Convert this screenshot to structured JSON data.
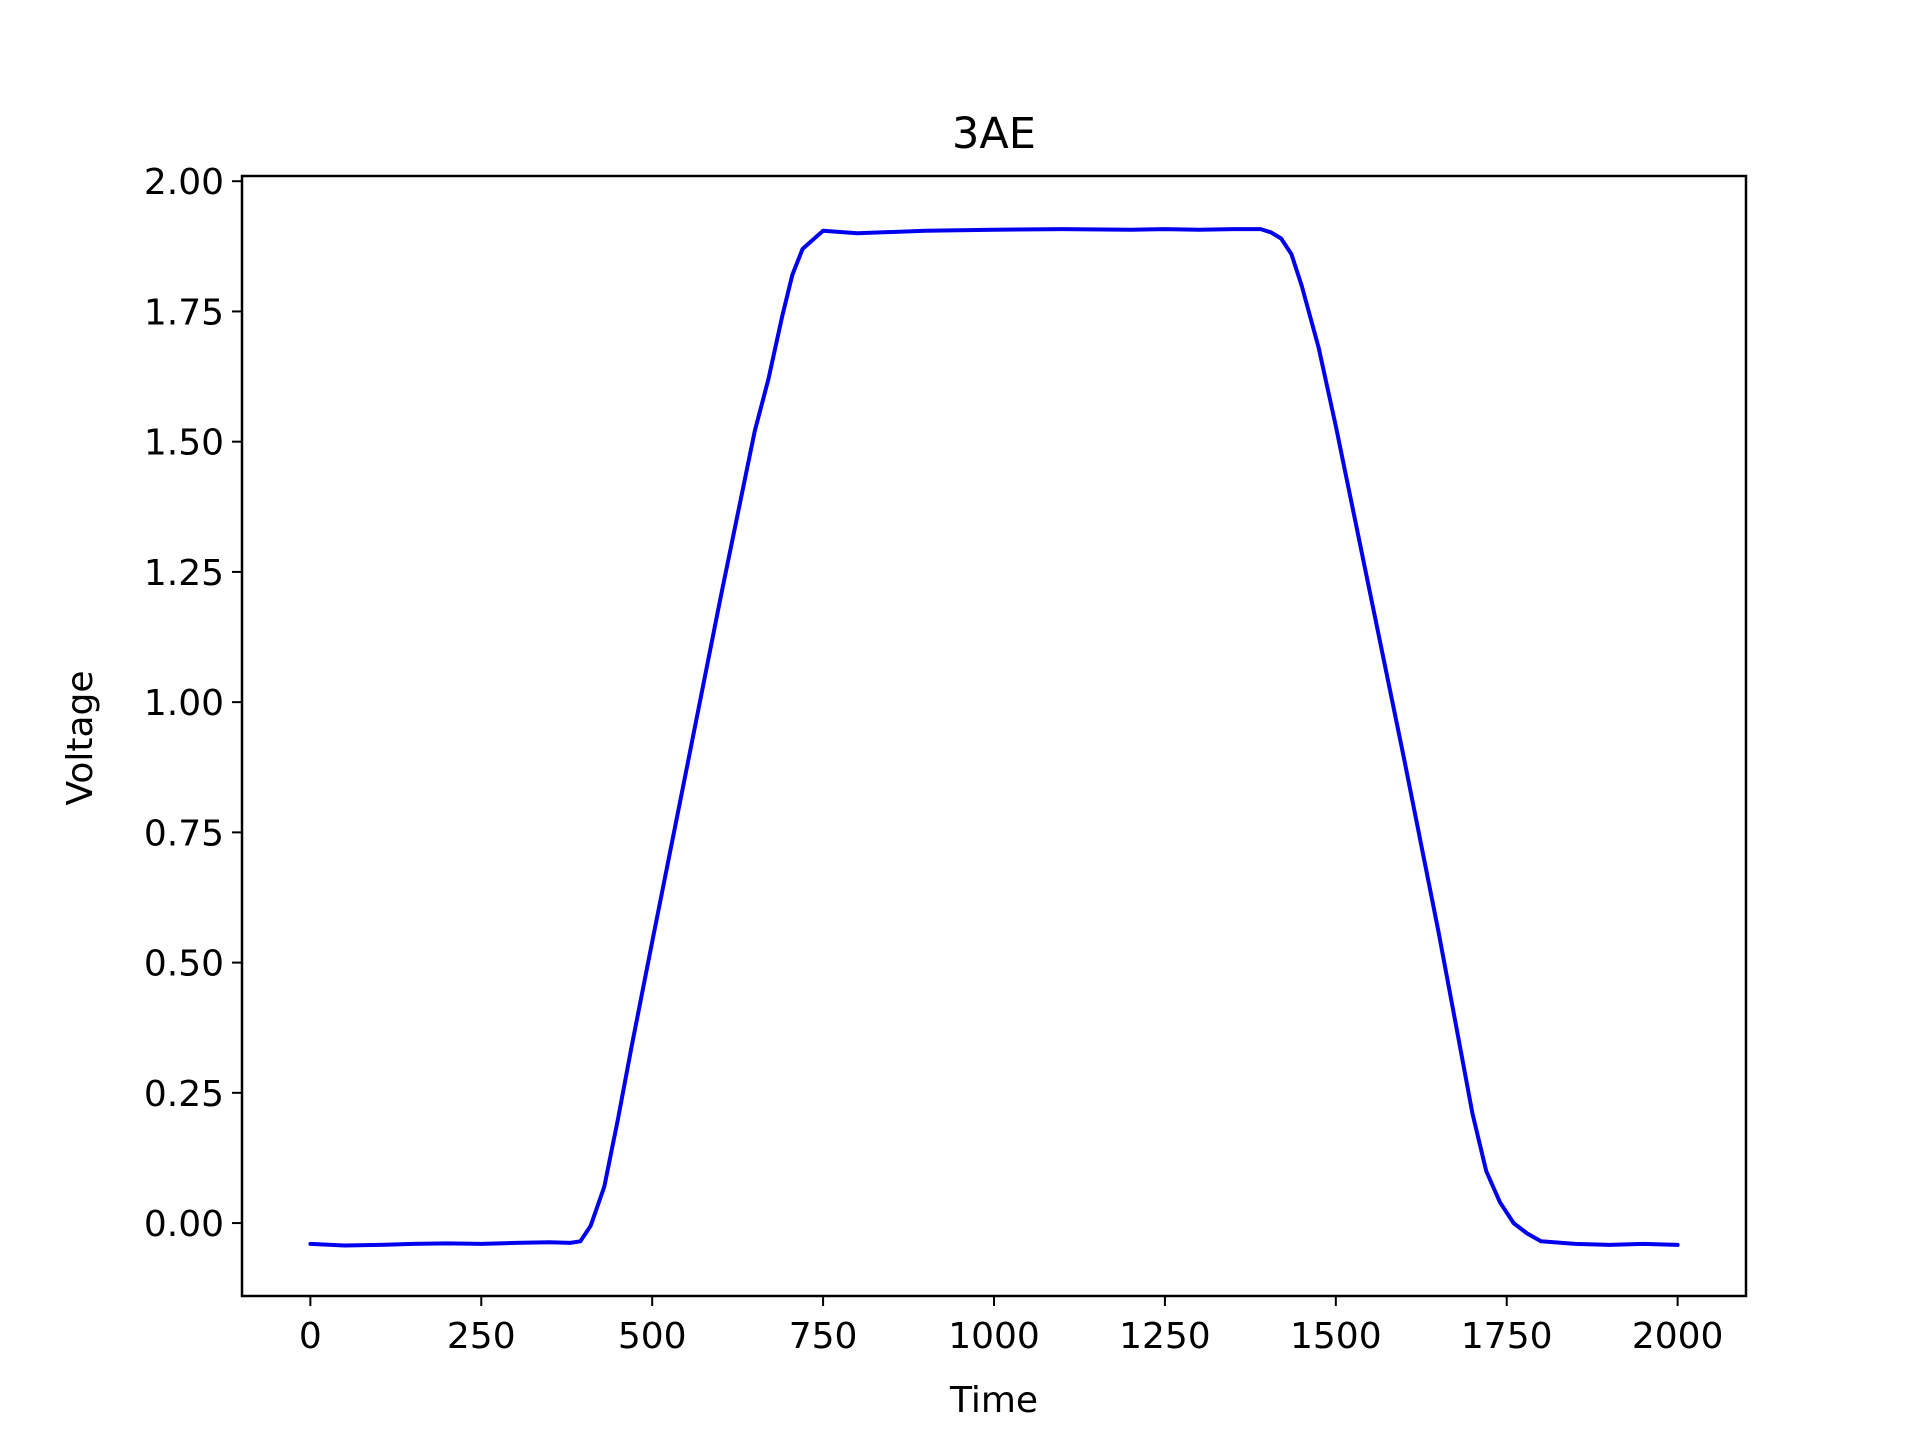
{
  "chart_data": {
    "type": "line",
    "title": "3AE",
    "xlabel": "Time",
    "ylabel": "Voltage",
    "xlim": [
      -100,
      2100
    ],
    "ylim": [
      -0.14,
      2.01
    ],
    "xticks": [
      0,
      250,
      500,
      750,
      1000,
      1250,
      1500,
      1750,
      2000
    ],
    "xtick_labels": [
      "0",
      "250",
      "500",
      "750",
      "1000",
      "1250",
      "1500",
      "1750",
      "2000"
    ],
    "yticks": [
      0.0,
      0.25,
      0.5,
      0.75,
      1.0,
      1.25,
      1.5,
      1.75,
      2.0
    ],
    "ytick_labels": [
      "0.00",
      "0.25",
      "0.50",
      "0.75",
      "1.00",
      "1.25",
      "1.50",
      "1.75",
      "2.00"
    ],
    "grid": false,
    "series": [
      {
        "color": "#0000ee",
        "x": [
          0,
          50,
          100,
          150,
          200,
          250,
          300,
          350,
          380,
          395,
          410,
          430,
          450,
          470,
          500,
          550,
          600,
          650,
          670,
          690,
          705,
          720,
          750,
          800,
          900,
          1000,
          1100,
          1200,
          1250,
          1300,
          1350,
          1390,
          1405,
          1420,
          1435,
          1450,
          1475,
          1500,
          1550,
          1600,
          1650,
          1680,
          1700,
          1720,
          1740,
          1760,
          1780,
          1800,
          1850,
          1900,
          1950,
          2000
        ],
        "y": [
          -0.04,
          -0.043,
          -0.042,
          -0.04,
          -0.039,
          -0.04,
          -0.038,
          -0.037,
          -0.038,
          -0.035,
          -0.005,
          0.07,
          0.2,
          0.34,
          0.54,
          0.87,
          1.2,
          1.52,
          1.62,
          1.74,
          1.82,
          1.87,
          1.905,
          1.9,
          1.905,
          1.907,
          1.908,
          1.907,
          1.908,
          1.907,
          1.908,
          1.908,
          1.902,
          1.89,
          1.86,
          1.8,
          1.68,
          1.53,
          1.21,
          0.89,
          0.56,
          0.35,
          0.21,
          0.1,
          0.04,
          0.0,
          -0.02,
          -0.035,
          -0.04,
          -0.042,
          -0.04,
          -0.042
        ]
      }
    ]
  }
}
